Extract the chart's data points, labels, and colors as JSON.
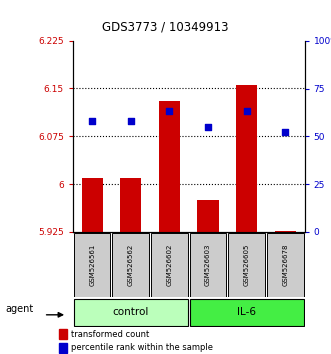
{
  "title": "GDS3773 / 10349913",
  "samples": [
    "GSM526561",
    "GSM526562",
    "GSM526602",
    "GSM526603",
    "GSM526605",
    "GSM526678"
  ],
  "bar_values": [
    6.01,
    6.01,
    6.13,
    5.975,
    6.155,
    5.927
  ],
  "dot_values": [
    58,
    58,
    63,
    55,
    63,
    52
  ],
  "bar_bottom": 5.925,
  "ylim_left": [
    5.925,
    6.225
  ],
  "ylim_right": [
    0,
    100
  ],
  "yticks_left": [
    5.925,
    6.0,
    6.075,
    6.15,
    6.225
  ],
  "yticks_right": [
    0,
    25,
    50,
    75,
    100
  ],
  "ytick_labels_left": [
    "5.925",
    "6",
    "6.075",
    "6.15",
    "6.225"
  ],
  "ytick_labels_right": [
    "0",
    "25",
    "50",
    "75",
    "100%"
  ],
  "hlines": [
    6.0,
    6.075,
    6.15
  ],
  "bar_color": "#cc0000",
  "dot_color": "#0000cc",
  "control_color": "#bbffbb",
  "il6_color": "#44ee44",
  "sample_box_color": "#cccccc",
  "left_tick_color": "#cc0000",
  "right_tick_color": "#0000cc",
  "legend_bar_label": "transformed count",
  "legend_dot_label": "percentile rank within the sample",
  "agent_label": "agent"
}
